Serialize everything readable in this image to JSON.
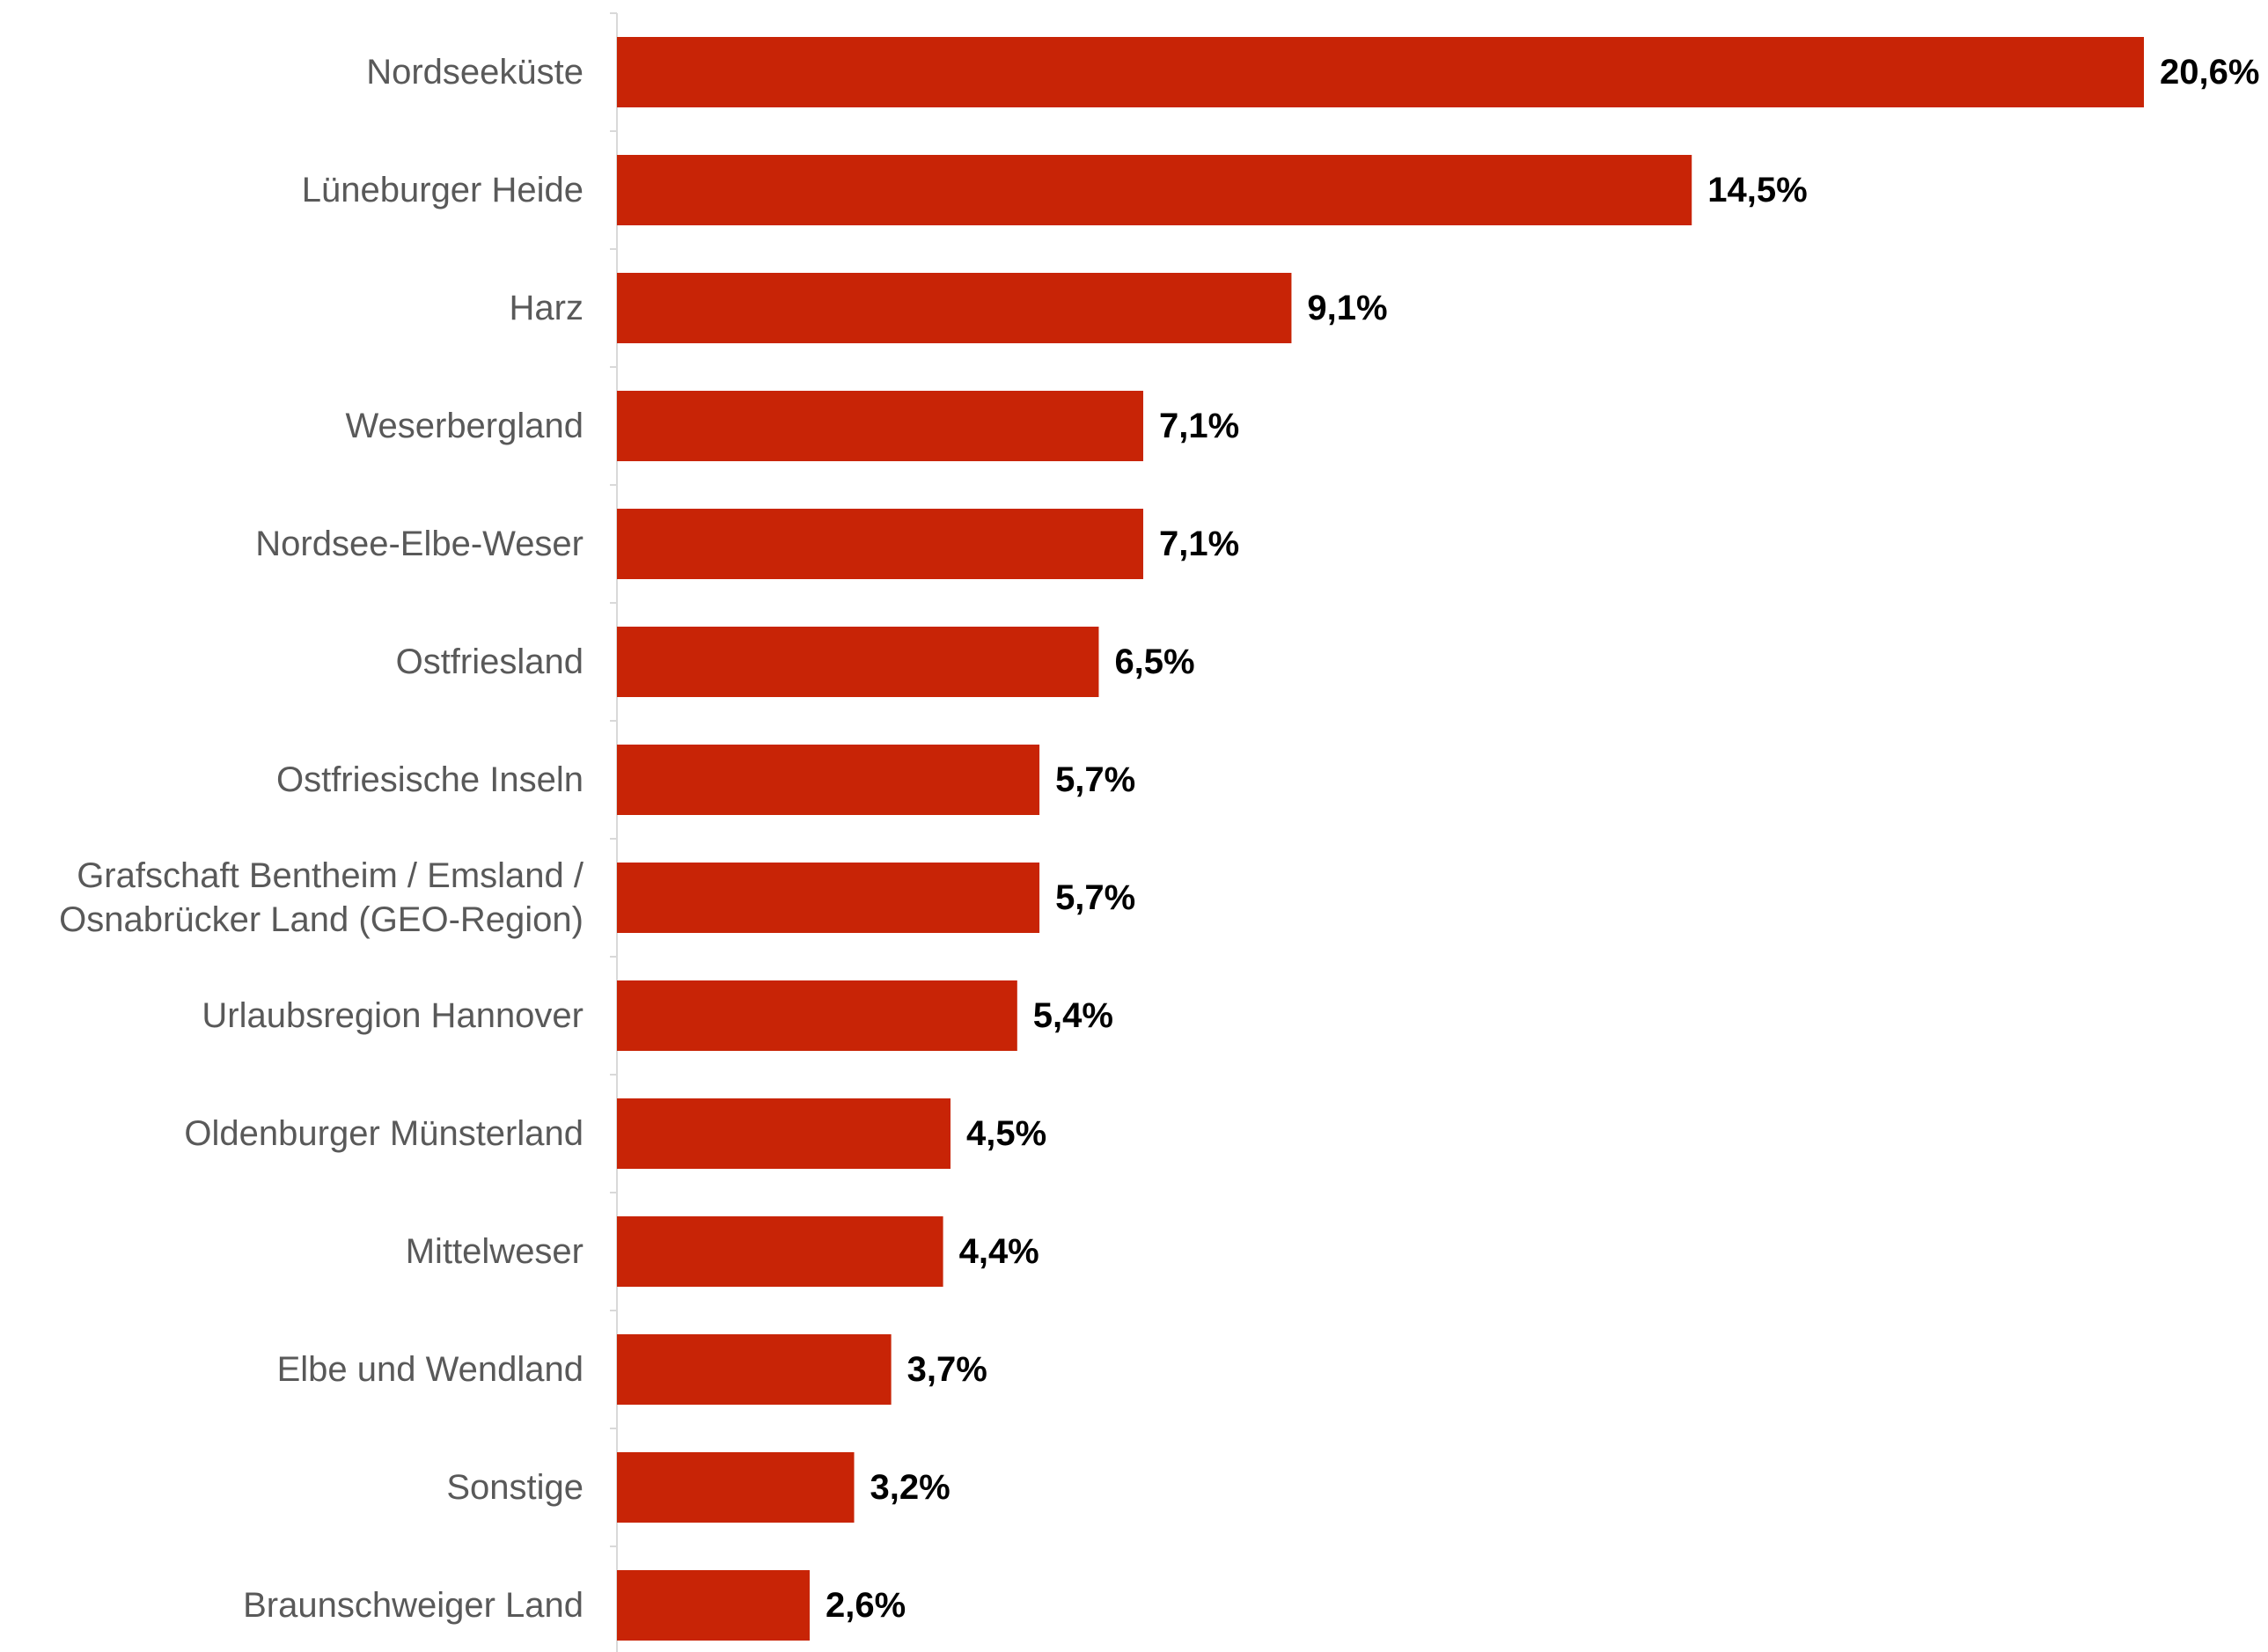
{
  "chart_data": {
    "type": "bar",
    "orientation": "horizontal",
    "title": "",
    "xlabel": "",
    "ylabel": "",
    "xlim": [
      0,
      20.6
    ],
    "grid": false,
    "legend": "none",
    "categories": [
      [
        "Nordseeküste"
      ],
      [
        "Lüneburger Heide"
      ],
      [
        "Harz"
      ],
      [
        "Weserbergland"
      ],
      [
        "Nordsee-Elbe-Weser"
      ],
      [
        "Ostfriesland"
      ],
      [
        "Ostfriesische Inseln"
      ],
      [
        "Grafschaft Bentheim / Emsland /",
        "Osnabrücker Land (GEO-Region)"
      ],
      [
        "Urlaubsregion Hannover"
      ],
      [
        "Oldenburger Münsterland"
      ],
      [
        "Mittelweser"
      ],
      [
        "Elbe und Wendland"
      ],
      [
        "Sonstige"
      ],
      [
        "Braunschweiger Land"
      ]
    ],
    "values": [
      20.6,
      14.5,
      9.1,
      7.1,
      7.1,
      6.5,
      5.7,
      5.7,
      5.4,
      4.5,
      4.4,
      3.7,
      3.2,
      2.6
    ],
    "value_labels": [
      "20,6%",
      "14,5%",
      "9,1%",
      "7,1%",
      "7,1%",
      "6,5%",
      "5,7%",
      "5,7%",
      "5,4%",
      "4,5%",
      "4,4%",
      "3,7%",
      "3,2%",
      "2,6%"
    ],
    "colors": {
      "bar": "#c82406",
      "axis": "#d9d9d9",
      "category_text": "#595959",
      "value_text": "#000000"
    }
  }
}
